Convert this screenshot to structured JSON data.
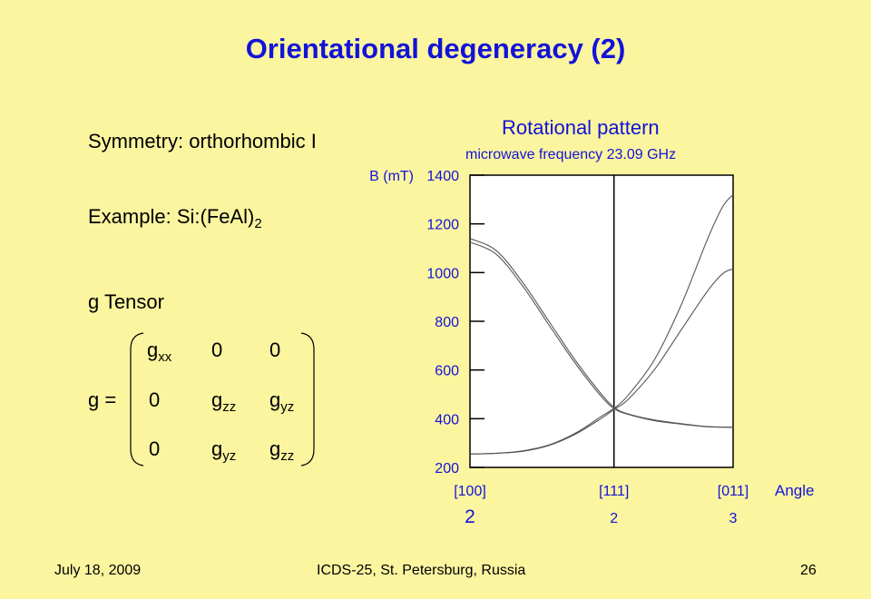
{
  "title": "Orientational degeneracy (2)",
  "symmetry": "Symmetry: orthorhombic I",
  "example": {
    "prefix": "Example: Si:(FeAl)",
    "subscript": "2"
  },
  "g_tensor_label": "g Tensor",
  "g_eq": "g =",
  "matrix": [
    [
      {
        "b": "g",
        "s": "xx"
      },
      {
        "b": "0",
        "s": ""
      },
      {
        "b": "0",
        "s": ""
      }
    ],
    [
      {
        "b": "0",
        "s": ""
      },
      {
        "b": "g",
        "s": "zz"
      },
      {
        "b": "g",
        "s": "yz"
      }
    ],
    [
      {
        "b": "0",
        "s": ""
      },
      {
        "b": "g",
        "s": "yz"
      },
      {
        "b": "g",
        "s": "zz"
      }
    ]
  ],
  "colors": {
    "background": "#FBF5A0",
    "title": "#1313D8",
    "chart_text": "#1313D8"
  },
  "chart_data": {
    "type": "line",
    "title": "Rotational pattern",
    "subtitle": "microwave frequency 23.09 GHz",
    "ylabel": "B (mT)",
    "xlabel": "Angle",
    "ylim": [
      200,
      1400
    ],
    "yticks": [
      "1400",
      "1200",
      "1000",
      "800",
      "600",
      "400",
      "200"
    ],
    "xticks": [
      {
        "label": "[100]",
        "count": "2",
        "pos": 0
      },
      {
        "label": "[111]",
        "count": "2",
        "pos": 0.5473
      },
      {
        "label": "[011]",
        "count": "3",
        "pos": 1
      }
    ],
    "x_unit_note": "x runs from [100] (0) through [111] (0.5473) to [011] (1)",
    "grid": false,
    "series": [
      {
        "points": [
          [
            0,
            1140
          ],
          [
            0.1,
            1090
          ],
          [
            0.2,
            960
          ],
          [
            0.3,
            800
          ],
          [
            0.4,
            640
          ],
          [
            0.5,
            500
          ],
          [
            0.55,
            445
          ],
          [
            0.6,
            420
          ],
          [
            0.7,
            395
          ],
          [
            0.8,
            380
          ],
          [
            0.9,
            368
          ],
          [
            1.0,
            365
          ]
        ]
      },
      {
        "points": [
          [
            0,
            1125
          ],
          [
            0.1,
            1075
          ],
          [
            0.2,
            945
          ],
          [
            0.3,
            785
          ],
          [
            0.4,
            628
          ],
          [
            0.5,
            490
          ],
          [
            0.55,
            440
          ],
          [
            0.6,
            418
          ],
          [
            0.7,
            392
          ],
          [
            0.8,
            378
          ],
          [
            0.9,
            367
          ],
          [
            1.0,
            365
          ]
        ]
      },
      {
        "points": [
          [
            0,
            255
          ],
          [
            0.1,
            258
          ],
          [
            0.2,
            268
          ],
          [
            0.3,
            292
          ],
          [
            0.4,
            340
          ],
          [
            0.5,
            410
          ],
          [
            0.55,
            445
          ],
          [
            0.6,
            495
          ],
          [
            0.7,
            640
          ],
          [
            0.8,
            860
          ],
          [
            0.9,
            1130
          ],
          [
            0.96,
            1270
          ],
          [
            1.0,
            1320
          ]
        ]
      },
      {
        "points": [
          [
            0,
            255
          ],
          [
            0.1,
            258
          ],
          [
            0.2,
            266
          ],
          [
            0.3,
            290
          ],
          [
            0.4,
            336
          ],
          [
            0.5,
            402
          ],
          [
            0.55,
            440
          ],
          [
            0.6,
            478
          ],
          [
            0.7,
            600
          ],
          [
            0.8,
            760
          ],
          [
            0.9,
            920
          ],
          [
            0.96,
            995
          ],
          [
            1.0,
            1015
          ]
        ]
      }
    ]
  },
  "footer": {
    "date": "July 18, 2009",
    "conference": "ICDS-25, St. Petersburg, Russia",
    "page": "26"
  }
}
